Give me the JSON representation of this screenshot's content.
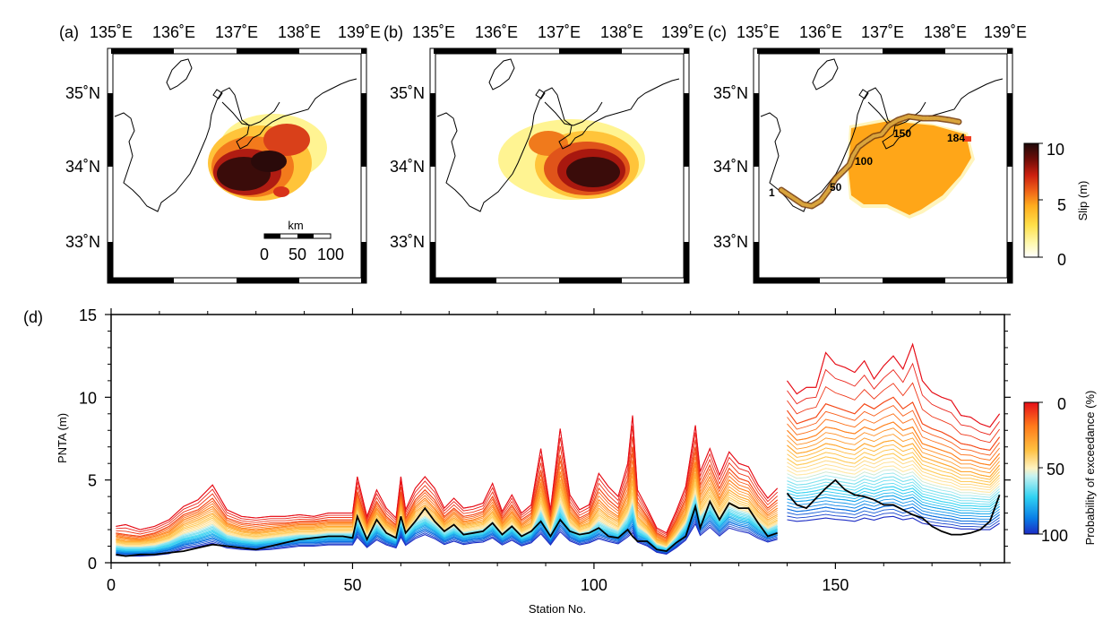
{
  "figure": {
    "panels": {
      "a": {
        "label": "(a)",
        "lon_ticks": [
          "135˚E",
          "136˚E",
          "137˚E",
          "138˚E",
          "139˚E"
        ],
        "lat_ticks": [
          "35˚N",
          "34˚N",
          "33˚N"
        ],
        "scalebar": {
          "unit": "km",
          "ticks": [
            "0",
            "50",
            "100"
          ]
        }
      },
      "b": {
        "label": "(b)",
        "lon_ticks": [
          "135˚E",
          "136˚E",
          "137˚E",
          "138˚E",
          "139˚E"
        ],
        "lat_ticks": [
          "35˚N",
          "34˚N",
          "33˚N"
        ]
      },
      "c": {
        "label": "(c)",
        "lon_ticks": [
          "135˚E",
          "136˚E",
          "137˚E",
          "138˚E",
          "139˚E"
        ],
        "lat_ticks": [
          "35˚N",
          "34˚N",
          "33˚N"
        ],
        "station_labels": [
          "1",
          "50",
          "100",
          "150",
          "184"
        ]
      },
      "d": {
        "label": "(d)"
      }
    },
    "slip_colorbar": {
      "label": "Slip (m)",
      "ticks": [
        "10",
        "5",
        "0"
      ],
      "range": [
        0,
        10
      ],
      "colors": [
        "#ffffff",
        "#fff27a",
        "#ffc42e",
        "#ff8a12",
        "#e02b12",
        "#8a0f08",
        "#2a0c0c"
      ]
    },
    "prob_colorbar": {
      "label": "Probability of exceedance (%)",
      "ticks": [
        "0",
        "50",
        "100"
      ],
      "range": [
        0,
        100
      ],
      "colors": [
        "#e60f19",
        "#ff8a18",
        "#ffc94a",
        "#fff1b6",
        "#bff0f0",
        "#33d7f0",
        "#0a8ae8",
        "#1a2ec8"
      ]
    }
  },
  "chart_data": {
    "type": "line",
    "xlabel": "Station No.",
    "ylabel": "PNTA (m)",
    "xlim": [
      0,
      185
    ],
    "ylim": [
      0,
      15
    ],
    "xticks": [
      "0",
      "50",
      "100",
      "150"
    ],
    "yticks": [
      "0",
      "5",
      "10",
      "15"
    ],
    "gap_after_station": 138,
    "x": [
      1,
      3,
      6,
      9,
      12,
      15,
      18,
      21,
      24,
      27,
      30,
      33,
      36,
      39,
      42,
      45,
      48,
      50,
      51,
      53,
      55,
      57,
      59,
      60,
      61,
      63,
      65,
      67,
      69,
      71,
      73,
      75,
      77,
      79,
      81,
      83,
      85,
      87,
      89,
      91,
      93,
      95,
      97,
      99,
      101,
      103,
      105,
      107,
      108,
      109,
      111,
      113,
      115,
      117,
      119,
      121,
      122,
      124,
      126,
      128,
      130,
      132,
      134,
      136,
      138,
      140,
      142,
      144,
      146,
      148,
      150,
      152,
      154,
      156,
      158,
      160,
      162,
      164,
      166,
      168,
      170,
      172,
      174,
      176,
      178,
      180,
      182,
      184
    ],
    "observed": [
      0.5,
      0.4,
      0.5,
      0.5,
      0.6,
      0.7,
      0.9,
      1.1,
      1.0,
      0.9,
      0.8,
      1.0,
      1.2,
      1.4,
      1.5,
      1.6,
      1.6,
      1.5,
      2.8,
      1.4,
      2.6,
      1.8,
      1.5,
      2.8,
      1.8,
      2.5,
      3.3,
      2.5,
      1.9,
      2.3,
      1.7,
      1.8,
      1.9,
      2.4,
      1.7,
      2.2,
      1.6,
      1.9,
      2.5,
      1.6,
      2.6,
      1.9,
      1.7,
      1.8,
      2.1,
      1.6,
      1.5,
      2.0,
      1.6,
      1.3,
      1.3,
      0.8,
      0.7,
      1.2,
      1.6,
      3.4,
      2.1,
      3.7,
      2.6,
      3.6,
      3.3,
      3.3,
      2.4,
      1.6,
      1.8,
      4.2,
      3.5,
      3.3,
      3.9,
      4.5,
      5.0,
      4.4,
      4.1,
      4.0,
      3.8,
      3.5,
      3.5,
      3.2,
      2.9,
      2.7,
      2.2,
      1.9,
      1.7,
      1.7,
      1.8,
      2.0,
      2.5,
      4.1
    ],
    "series": [
      {
        "name": "0%",
        "values": [
          2.2,
          2.3,
          2.0,
          2.2,
          2.6,
          3.4,
          3.8,
          4.7,
          3.2,
          2.8,
          2.7,
          2.8,
          2.8,
          2.9,
          2.8,
          3.0,
          3.0,
          3.0,
          5.2,
          2.8,
          4.4,
          3.3,
          2.7,
          5.2,
          3.2,
          4.5,
          5.2,
          4.5,
          3.3,
          3.9,
          3.3,
          3.4,
          3.6,
          4.8,
          3.1,
          4.1,
          3.0,
          3.5,
          6.9,
          3.2,
          8.1,
          4.1,
          3.2,
          3.5,
          5.4,
          4.6,
          4.0,
          6.0,
          8.9,
          4.4,
          3.3,
          2.1,
          1.8,
          3.1,
          4.6,
          8.3,
          5.5,
          6.9,
          5.3,
          6.7,
          6.0,
          5.8,
          4.7,
          3.9,
          4.5,
          11.0,
          10.2,
          10.6,
          10.6,
          12.7,
          12.0,
          11.8,
          11.5,
          12.2,
          11.1,
          11.9,
          12.5,
          11.7,
          13.2,
          11.0,
          10.3,
          10.0,
          9.8,
          8.9,
          8.8,
          8.4,
          8.2,
          9.0
        ]
      },
      {
        "name": "10%",
        "values": [
          1.8,
          1.7,
          1.6,
          1.8,
          2.2,
          2.9,
          3.2,
          3.9,
          2.7,
          2.4,
          2.3,
          2.4,
          2.4,
          2.5,
          2.5,
          2.6,
          2.6,
          2.6,
          4.3,
          2.4,
          3.7,
          2.8,
          2.3,
          4.3,
          2.7,
          3.8,
          4.4,
          3.8,
          2.8,
          3.3,
          2.8,
          2.9,
          3.1,
          4.0,
          2.7,
          3.5,
          2.6,
          3.0,
          5.6,
          2.8,
          6.5,
          3.5,
          2.7,
          3.0,
          4.5,
          3.8,
          3.3,
          5.0,
          7.0,
          3.7,
          2.8,
          1.8,
          1.5,
          2.6,
          3.9,
          7.0,
          4.7,
          5.9,
          4.5,
          5.7,
          5.1,
          4.9,
          4.0,
          3.3,
          3.8,
          9.2,
          8.4,
          8.6,
          8.8,
          9.6,
          9.4,
          9.2,
          9.0,
          9.6,
          9.3,
          9.7,
          10.0,
          9.3,
          9.7,
          8.4,
          8.1,
          7.9,
          7.6,
          7.2,
          7.1,
          6.9,
          6.8,
          7.6
        ]
      },
      {
        "name": "20%",
        "values": [
          1.6,
          1.5,
          1.4,
          1.6,
          1.9,
          2.6,
          2.9,
          3.4,
          2.4,
          2.1,
          2.0,
          2.1,
          2.2,
          2.3,
          2.3,
          2.4,
          2.4,
          2.4,
          3.8,
          2.2,
          3.3,
          2.5,
          2.1,
          3.8,
          2.4,
          3.4,
          3.9,
          3.3,
          2.5,
          3.0,
          2.5,
          2.6,
          2.8,
          3.5,
          2.4,
          3.1,
          2.3,
          2.7,
          4.8,
          2.5,
          5.5,
          3.1,
          2.4,
          2.7,
          3.8,
          3.2,
          2.8,
          4.2,
          5.8,
          3.2,
          2.5,
          1.6,
          1.3,
          2.3,
          3.4,
          6.1,
          4.1,
          5.2,
          3.9,
          5.0,
          4.5,
          4.3,
          3.5,
          2.9,
          3.3,
          8.0,
          7.4,
          7.5,
          7.7,
          8.2,
          8.1,
          7.9,
          7.8,
          8.2,
          8.0,
          8.3,
          8.5,
          8.0,
          8.2,
          7.2,
          7.0,
          6.8,
          6.6,
          6.2,
          6.2,
          6.0,
          5.9,
          6.6
        ]
      },
      {
        "name": "30%",
        "values": [
          1.4,
          1.3,
          1.3,
          1.4,
          1.7,
          2.3,
          2.6,
          3.0,
          2.2,
          1.9,
          1.8,
          1.9,
          2.0,
          2.1,
          2.1,
          2.2,
          2.2,
          2.2,
          3.4,
          2.0,
          3.0,
          2.3,
          1.9,
          3.4,
          2.2,
          3.1,
          3.5,
          3.0,
          2.3,
          2.7,
          2.3,
          2.4,
          2.5,
          3.1,
          2.2,
          2.8,
          2.1,
          2.4,
          4.2,
          2.3,
          4.8,
          2.8,
          2.2,
          2.4,
          3.3,
          2.8,
          2.5,
          3.6,
          5.0,
          2.8,
          2.2,
          1.4,
          1.2,
          2.0,
          3.0,
          5.4,
          3.6,
          4.6,
          3.5,
          4.4,
          4.0,
          3.8,
          3.1,
          2.6,
          2.9,
          7.1,
          6.6,
          6.7,
          6.9,
          7.2,
          7.1,
          6.9,
          6.8,
          7.2,
          7.0,
          7.3,
          7.4,
          7.0,
          7.2,
          6.4,
          6.2,
          6.0,
          5.8,
          5.5,
          5.5,
          5.3,
          5.2,
          5.9
        ]
      },
      {
        "name": "40%",
        "values": [
          1.25,
          1.15,
          1.15,
          1.25,
          1.5,
          2.05,
          2.3,
          2.7,
          1.95,
          1.7,
          1.6,
          1.7,
          1.8,
          1.9,
          1.9,
          2.0,
          2.0,
          2.0,
          3.1,
          1.8,
          2.7,
          2.1,
          1.75,
          3.1,
          2.0,
          2.8,
          3.2,
          2.7,
          2.1,
          2.45,
          2.1,
          2.2,
          2.3,
          2.8,
          2.0,
          2.55,
          1.9,
          2.2,
          3.7,
          2.1,
          4.2,
          2.5,
          2.0,
          2.2,
          2.9,
          2.5,
          2.2,
          3.2,
          4.3,
          2.5,
          2.0,
          1.25,
          1.05,
          1.8,
          2.7,
          4.8,
          3.2,
          4.1,
          3.1,
          3.95,
          3.6,
          3.4,
          2.8,
          2.3,
          2.6,
          6.3,
          5.9,
          6.0,
          6.2,
          6.4,
          6.3,
          6.1,
          6.0,
          6.4,
          6.2,
          6.5,
          6.6,
          6.2,
          6.4,
          5.7,
          5.5,
          5.3,
          5.2,
          4.9,
          4.9,
          4.8,
          4.7,
          5.3
        ]
      },
      {
        "name": "50%",
        "values": [
          1.1,
          1.0,
          1.0,
          1.1,
          1.35,
          1.8,
          2.05,
          2.4,
          1.75,
          1.55,
          1.45,
          1.55,
          1.65,
          1.75,
          1.75,
          1.85,
          1.85,
          1.85,
          2.8,
          1.65,
          2.45,
          1.9,
          1.6,
          2.8,
          1.85,
          2.55,
          2.9,
          2.45,
          1.9,
          2.25,
          1.9,
          2.0,
          2.1,
          2.55,
          1.85,
          2.35,
          1.75,
          2.0,
          3.3,
          1.9,
          3.7,
          2.3,
          1.85,
          2.0,
          2.6,
          2.25,
          2.0,
          2.9,
          3.8,
          2.25,
          1.8,
          1.15,
          0.95,
          1.6,
          2.45,
          4.3,
          2.9,
          3.7,
          2.8,
          3.55,
          3.25,
          3.1,
          2.55,
          2.1,
          2.4,
          5.6,
          5.3,
          5.35,
          5.5,
          5.7,
          5.6,
          5.45,
          5.35,
          5.7,
          5.5,
          5.8,
          5.85,
          5.5,
          5.7,
          5.1,
          4.9,
          4.75,
          4.65,
          4.4,
          4.4,
          4.3,
          4.25,
          4.8
        ]
      },
      {
        "name": "60%",
        "values": [
          0.95,
          0.88,
          0.88,
          0.95,
          1.2,
          1.6,
          1.82,
          2.15,
          1.58,
          1.4,
          1.3,
          1.4,
          1.5,
          1.6,
          1.6,
          1.7,
          1.7,
          1.7,
          2.55,
          1.5,
          2.25,
          1.72,
          1.45,
          2.55,
          1.7,
          2.35,
          2.65,
          2.25,
          1.75,
          2.05,
          1.75,
          1.85,
          1.92,
          2.35,
          1.7,
          2.15,
          1.6,
          1.85,
          2.95,
          1.72,
          3.3,
          2.1,
          1.7,
          1.85,
          2.35,
          2.05,
          1.82,
          2.6,
          3.35,
          2.05,
          1.65,
          1.05,
          0.88,
          1.45,
          2.25,
          3.9,
          2.65,
          3.4,
          2.55,
          3.25,
          3.0,
          2.85,
          2.35,
          1.95,
          2.2,
          4.95,
          4.7,
          4.75,
          4.9,
          5.05,
          4.95,
          4.85,
          4.75,
          5.05,
          4.9,
          5.15,
          5.2,
          4.9,
          5.05,
          4.5,
          4.35,
          4.2,
          4.1,
          3.9,
          3.9,
          3.85,
          3.8,
          4.3
        ]
      },
      {
        "name": "70%",
        "values": [
          0.85,
          0.78,
          0.78,
          0.85,
          1.05,
          1.42,
          1.62,
          1.92,
          1.42,
          1.27,
          1.18,
          1.27,
          1.37,
          1.47,
          1.47,
          1.56,
          1.56,
          1.56,
          2.3,
          1.37,
          2.05,
          1.57,
          1.32,
          2.32,
          1.55,
          2.15,
          2.45,
          2.07,
          1.6,
          1.88,
          1.6,
          1.7,
          1.77,
          2.15,
          1.56,
          1.97,
          1.47,
          1.7,
          2.65,
          1.57,
          2.95,
          1.92,
          1.56,
          1.7,
          2.12,
          1.87,
          1.66,
          2.35,
          2.95,
          1.85,
          1.5,
          0.95,
          0.8,
          1.32,
          2.05,
          3.55,
          2.42,
          3.12,
          2.35,
          3.0,
          2.75,
          2.62,
          2.15,
          1.8,
          2.02,
          4.4,
          4.2,
          4.25,
          4.35,
          4.5,
          4.4,
          4.3,
          4.2,
          4.5,
          4.35,
          4.55,
          4.6,
          4.35,
          4.5,
          4.0,
          3.85,
          3.7,
          3.6,
          3.45,
          3.45,
          3.4,
          3.4,
          3.85
        ]
      },
      {
        "name": "80%",
        "values": [
          0.72,
          0.66,
          0.66,
          0.72,
          0.9,
          1.25,
          1.43,
          1.7,
          1.27,
          1.14,
          1.06,
          1.14,
          1.24,
          1.34,
          1.34,
          1.43,
          1.43,
          1.43,
          2.1,
          1.25,
          1.86,
          1.43,
          1.2,
          2.1,
          1.41,
          1.96,
          2.25,
          1.9,
          1.46,
          1.72,
          1.46,
          1.56,
          1.63,
          1.96,
          1.43,
          1.8,
          1.35,
          1.56,
          2.38,
          1.43,
          2.62,
          1.75,
          1.43,
          1.56,
          1.92,
          1.7,
          1.51,
          2.12,
          2.6,
          1.67,
          1.37,
          0.86,
          0.72,
          1.2,
          1.85,
          3.2,
          2.2,
          2.85,
          2.15,
          2.75,
          2.52,
          2.4,
          1.96,
          1.65,
          1.85,
          3.85,
          3.7,
          3.75,
          3.85,
          3.95,
          3.85,
          3.8,
          3.7,
          3.95,
          3.8,
          4.0,
          4.05,
          3.8,
          3.95,
          3.5,
          3.35,
          3.25,
          3.15,
          3.0,
          3.0,
          2.95,
          2.95,
          3.4
        ]
      },
      {
        "name": "90%",
        "values": [
          0.6,
          0.55,
          0.55,
          0.6,
          0.75,
          1.07,
          1.23,
          1.46,
          1.1,
          0.99,
          0.92,
          0.99,
          1.09,
          1.19,
          1.19,
          1.27,
          1.27,
          1.27,
          1.85,
          1.1,
          1.64,
          1.27,
          1.06,
          1.86,
          1.25,
          1.74,
          2.0,
          1.7,
          1.3,
          1.54,
          1.3,
          1.4,
          1.46,
          1.75,
          1.27,
          1.6,
          1.2,
          1.4,
          2.08,
          1.27,
          2.27,
          1.55,
          1.27,
          1.4,
          1.7,
          1.5,
          1.34,
          1.86,
          2.22,
          1.47,
          1.2,
          0.76,
          0.63,
          1.06,
          1.62,
          2.8,
          1.95,
          2.52,
          1.9,
          2.45,
          2.25,
          2.12,
          1.74,
          1.46,
          1.65,
          3.25,
          3.1,
          3.15,
          3.25,
          3.35,
          3.25,
          3.2,
          3.1,
          3.35,
          3.2,
          3.4,
          3.45,
          3.2,
          3.35,
          2.95,
          2.82,
          2.72,
          2.65,
          2.52,
          2.52,
          2.48,
          2.48,
          2.9
        ]
      },
      {
        "name": "100%",
        "values": [
          0.45,
          0.4,
          0.4,
          0.45,
          0.55,
          0.85,
          0.98,
          1.18,
          0.9,
          0.8,
          0.75,
          0.8,
          0.9,
          1.0,
          1.0,
          1.08,
          1.08,
          1.08,
          1.55,
          0.92,
          1.38,
          1.08,
          0.9,
          1.56,
          1.05,
          1.46,
          1.7,
          1.45,
          1.1,
          1.3,
          1.1,
          1.2,
          1.25,
          1.5,
          1.08,
          1.36,
          1.02,
          1.2,
          1.75,
          1.08,
          1.88,
          1.32,
          1.08,
          1.2,
          1.45,
          1.28,
          1.14,
          1.56,
          1.82,
          1.25,
          1.02,
          0.63,
          0.52,
          0.9,
          1.37,
          2.35,
          1.65,
          2.15,
          1.62,
          2.1,
          1.92,
          1.8,
          1.48,
          1.25,
          1.42,
          2.6,
          2.5,
          2.55,
          2.62,
          2.7,
          2.62,
          2.58,
          2.5,
          2.7,
          2.58,
          2.75,
          2.8,
          2.6,
          2.7,
          2.38,
          2.28,
          2.2,
          2.14,
          2.04,
          2.04,
          2.0,
          2.0,
          2.38
        ]
      }
    ]
  }
}
